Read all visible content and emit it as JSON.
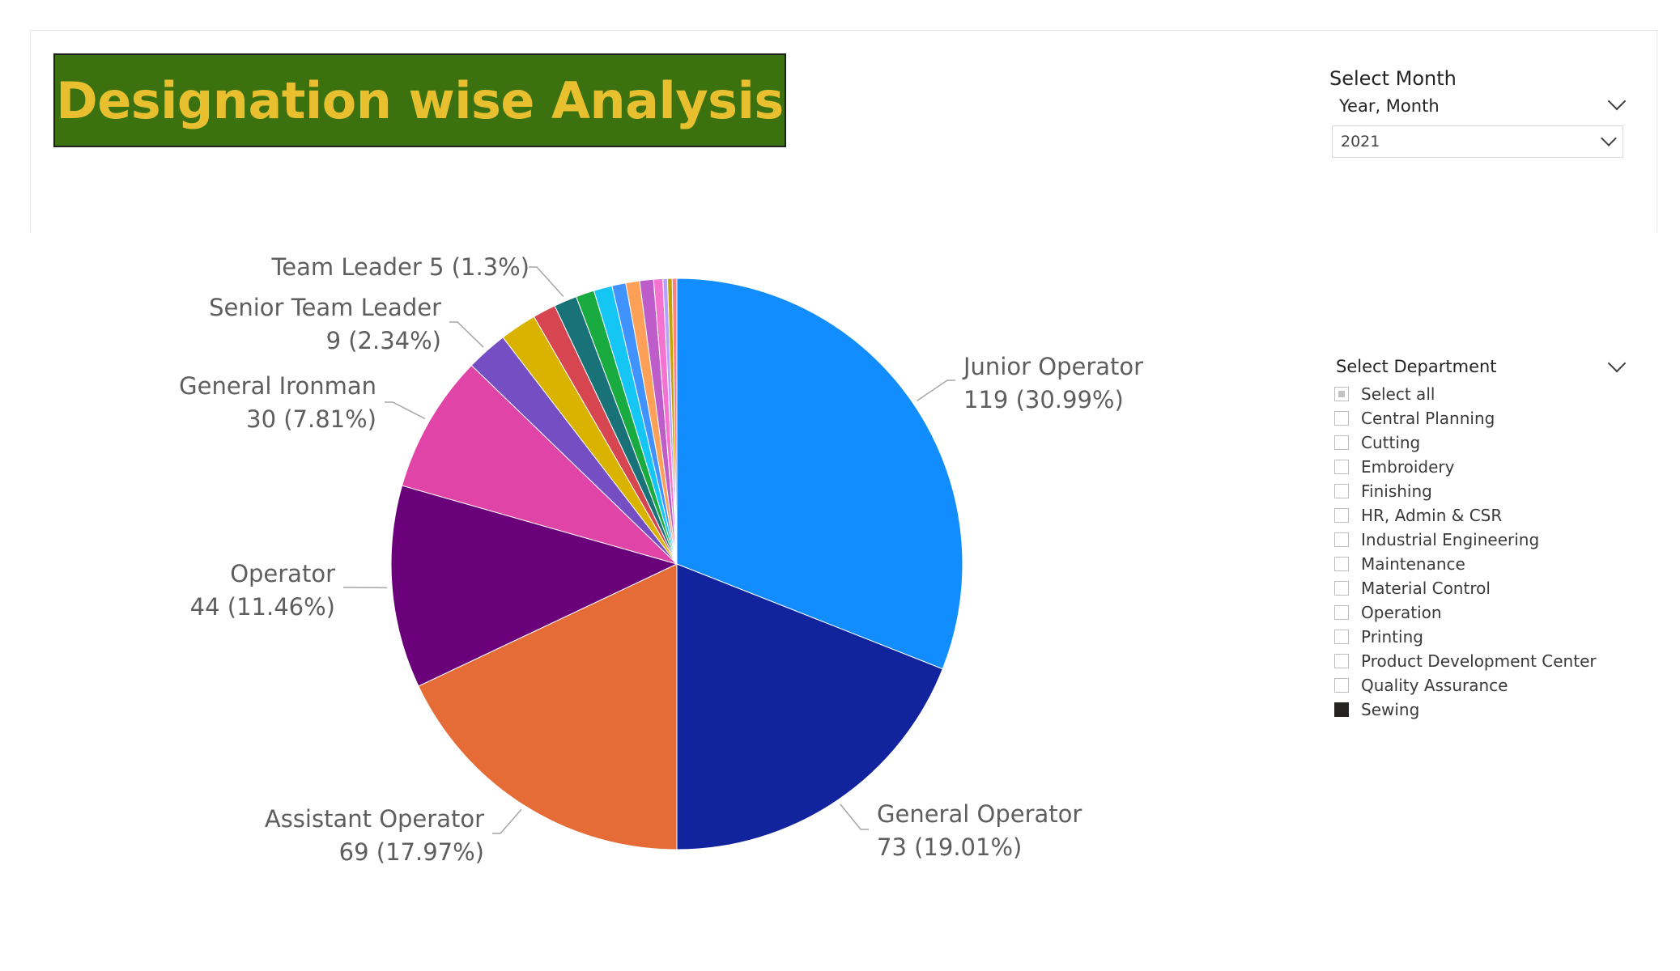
{
  "header": {
    "title": "Designation wise Analysis"
  },
  "month_slicer": {
    "title": "Select Month",
    "field": "Year, Month",
    "selected": "2021"
  },
  "department_slicer": {
    "title": "Select Department",
    "items": [
      {
        "label": "Select all",
        "state": "partial"
      },
      {
        "label": "Central Planning",
        "state": "unchecked"
      },
      {
        "label": "Cutting",
        "state": "unchecked"
      },
      {
        "label": "Embroidery",
        "state": "unchecked"
      },
      {
        "label": "Finishing",
        "state": "unchecked"
      },
      {
        "label": "HR, Admin & CSR",
        "state": "unchecked"
      },
      {
        "label": "Industrial Engineering",
        "state": "unchecked"
      },
      {
        "label": "Maintenance",
        "state": "unchecked"
      },
      {
        "label": "Material Control",
        "state": "unchecked"
      },
      {
        "label": "Operation",
        "state": "unchecked"
      },
      {
        "label": "Printing",
        "state": "unchecked"
      },
      {
        "label": "Product Development Center",
        "state": "unchecked"
      },
      {
        "label": "Quality Assurance",
        "state": "unchecked"
      },
      {
        "label": "Sewing",
        "state": "checked"
      }
    ]
  },
  "chart_data": {
    "type": "pie",
    "title": "",
    "start_angle_deg": 0,
    "direction": "clockwise",
    "slices": [
      {
        "label": "Junior Operator",
        "value": 119,
        "percent": "30.99%",
        "color": "#118dff",
        "data_label": [
          "Junior Operator",
          "119 (30.99%)"
        ]
      },
      {
        "label": "General Operator",
        "value": 73,
        "percent": "19.01%",
        "color": "#12239e",
        "data_label": [
          "General Operator",
          "73 (19.01%)"
        ]
      },
      {
        "label": "Assistant Operator",
        "value": 69,
        "percent": "17.97%",
        "color": "#e66c37",
        "data_label": [
          "Assistant Operator",
          "69 (17.97%)"
        ]
      },
      {
        "label": "Operator",
        "value": 44,
        "percent": "11.46%",
        "color": "#6b007b",
        "data_label": [
          "Operator",
          "44 (11.46%)"
        ]
      },
      {
        "label": "General Ironman",
        "value": 30,
        "percent": "7.81%",
        "color": "#e044a7",
        "data_label": [
          "General Ironman",
          "30 (7.81%)"
        ]
      },
      {
        "label": "Senior Team Leader",
        "value": 9,
        "percent": "2.34%",
        "color": "#744ec2",
        "data_label": [
          "Senior Team Leader",
          "9 (2.34%)"
        ]
      },
      {
        "label": "",
        "value": 8,
        "color": "#d9b300"
      },
      {
        "label": "",
        "value": 5,
        "color": "#d64550"
      },
      {
        "label": "Team Leader 5",
        "value": 5,
        "percent": "1.3%",
        "color": "#197278",
        "data_label": [
          "Team Leader 5 (1.3%)"
        ]
      },
      {
        "label": "",
        "value": 4,
        "color": "#1aab40"
      },
      {
        "label": "",
        "value": 4,
        "color": "#15c6f4"
      },
      {
        "label": "",
        "value": 3,
        "color": "#4092ff"
      },
      {
        "label": "",
        "value": 3,
        "color": "#ffa058"
      },
      {
        "label": "",
        "value": 3,
        "color": "#be5dc9"
      },
      {
        "label": "",
        "value": 2,
        "color": "#f472d0"
      },
      {
        "label": "",
        "value": 1,
        "color": "#b5a1ff"
      },
      {
        "label": "",
        "value": 1,
        "color": "#c4a200"
      },
      {
        "label": "",
        "value": 1,
        "color": "#ff8080"
      }
    ]
  }
}
